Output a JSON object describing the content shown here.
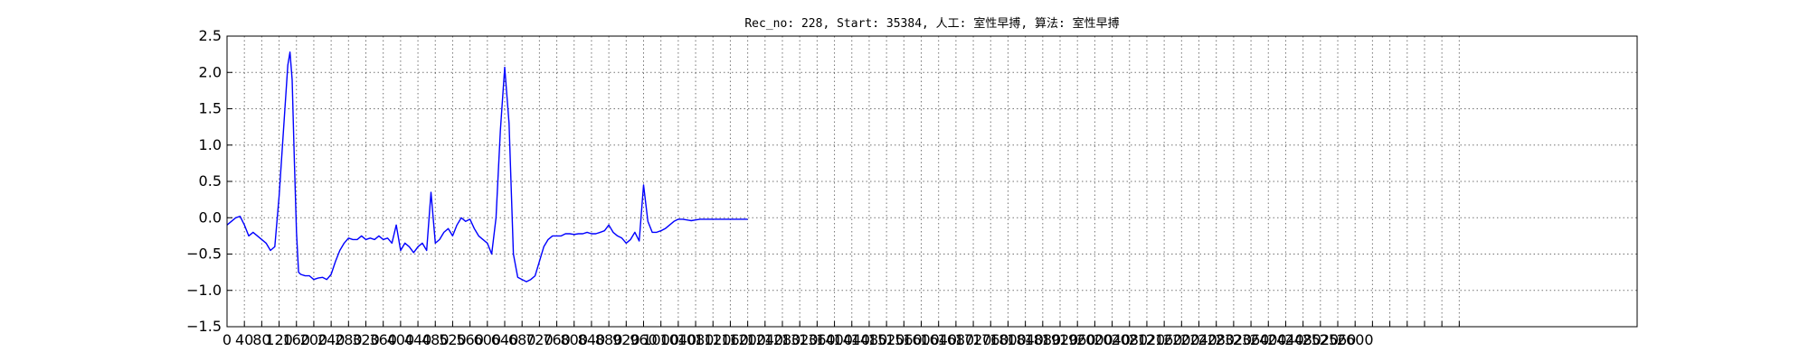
{
  "chart_data": {
    "type": "line",
    "title": "Rec_no: 228, Start: 35384, 人工: 室性早搏, 算法: 室性早搏",
    "xlabel": "",
    "ylabel": "",
    "xlim": [
      0,
      3250
    ],
    "ylim": [
      -1.5,
      2.5
    ],
    "grid": true,
    "yticks": [
      -1.5,
      -1.0,
      -0.5,
      0.0,
      0.5,
      1.0,
      1.5,
      2.0,
      2.5
    ],
    "ytick_labels": [
      "−1.5",
      "−1.0",
      "−0.5",
      "0.0",
      "0.5",
      "1.0",
      "1.5",
      "2.0",
      "2.5"
    ],
    "xtick_step": 40,
    "xtick_max": 2840,
    "xtick_labels_visible": [
      "0",
      "40",
      "80",
      "120",
      "160",
      "200",
      "240",
      "280",
      "320",
      "360",
      "400",
      "440",
      "480",
      "520",
      "560",
      "600",
      "640",
      "680",
      "720",
      "760",
      "800",
      "840",
      "880",
      "920",
      "960",
      "1000",
      "1040",
      "1080",
      "1120",
      "1160",
      "1200",
      "1240",
      "1280",
      "1320",
      "1360",
      "1400",
      "1440",
      "1480",
      "1520",
      "1560",
      "1600",
      "1640",
      "1680",
      "1720",
      "1760",
      "1800",
      "1840",
      "1880",
      "1920",
      "1960",
      "2000",
      "2040",
      "2080",
      "2120",
      "2160",
      "2200",
      "2240",
      "2280",
      "2320",
      "2360",
      "2400",
      "2440",
      "2480",
      "2520",
      "2560",
      "2600"
    ],
    "colors": {
      "normal": "#0000ff",
      "highlight": "#ff0000"
    },
    "series": [
      {
        "color": "#0000ff",
        "x": [
          0,
          10,
          20,
          30,
          40,
          50,
          60,
          70,
          80,
          90,
          100,
          110,
          120,
          130,
          140,
          145,
          150,
          155,
          160,
          165,
          170,
          180,
          190,
          200,
          210,
          220,
          230,
          240,
          250,
          260,
          270,
          280,
          290,
          300,
          310,
          320,
          330,
          340,
          350,
          360,
          370,
          380,
          390,
          400,
          410,
          420,
          430,
          440,
          450,
          460,
          470,
          480,
          490,
          500,
          510,
          520,
          530,
          540,
          550,
          560,
          570,
          580,
          590,
          600,
          610,
          620,
          630,
          640,
          650,
          660,
          670,
          680,
          690,
          700,
          710,
          720,
          730,
          740,
          750,
          760,
          770,
          780,
          790,
          800,
          810,
          820,
          830,
          840,
          850,
          860,
          870,
          880,
          890,
          900,
          910,
          920,
          930,
          940,
          950,
          960,
          970,
          980,
          990,
          1000,
          1010,
          1020,
          1030,
          1040,
          1050,
          1060,
          1070,
          1080,
          1090,
          1100,
          1110,
          1120,
          1130,
          1140,
          1150,
          1160,
          1170,
          1180,
          1190,
          1200
        ],
        "y": [
          -0.1,
          -0.05,
          0.0,
          0.02,
          -0.1,
          -0.25,
          -0.2,
          -0.25,
          -0.3,
          -0.35,
          -0.45,
          -0.4,
          0.3,
          1.2,
          2.1,
          2.28,
          1.9,
          0.8,
          -0.2,
          -0.75,
          -0.78,
          -0.8,
          -0.8,
          -0.85,
          -0.83,
          -0.82,
          -0.85,
          -0.78,
          -0.6,
          -0.45,
          -0.35,
          -0.28,
          -0.3,
          -0.3,
          -0.25,
          -0.3,
          -0.28,
          -0.3,
          -0.25,
          -0.3,
          -0.28,
          -0.35,
          -0.1,
          -0.45,
          -0.35,
          -0.4,
          -0.48,
          -0.4,
          -0.35,
          -0.45,
          0.35,
          -0.35,
          -0.3,
          -0.2,
          -0.15,
          -0.25,
          -0.1,
          0.0,
          -0.05,
          -0.02,
          -0.15,
          -0.25,
          -0.3,
          -0.35,
          -0.5,
          0.0,
          1.2,
          2.07,
          1.3,
          -0.5,
          -0.82,
          -0.85,
          -0.88,
          -0.85,
          -0.8,
          -0.6,
          -0.4,
          -0.3,
          -0.25,
          -0.25,
          -0.25,
          -0.22,
          -0.22,
          -0.23,
          -0.22,
          -0.22,
          -0.2,
          -0.22,
          -0.22,
          -0.2,
          -0.18,
          -0.1,
          -0.2,
          -0.25,
          -0.28,
          -0.35,
          -0.3,
          -0.2,
          -0.32,
          0.45,
          -0.05,
          -0.2,
          -0.2,
          -0.18,
          -0.15,
          -0.1,
          -0.05,
          -0.02,
          -0.02,
          -0.03,
          -0.04,
          -0.03,
          -0.02,
          -0.02,
          -0.02,
          -0.02,
          -0.02,
          -0.02,
          -0.02,
          -0.02,
          -0.02,
          -0.02,
          -0.02,
          -0.02
        ]
      }
    ]
  }
}
